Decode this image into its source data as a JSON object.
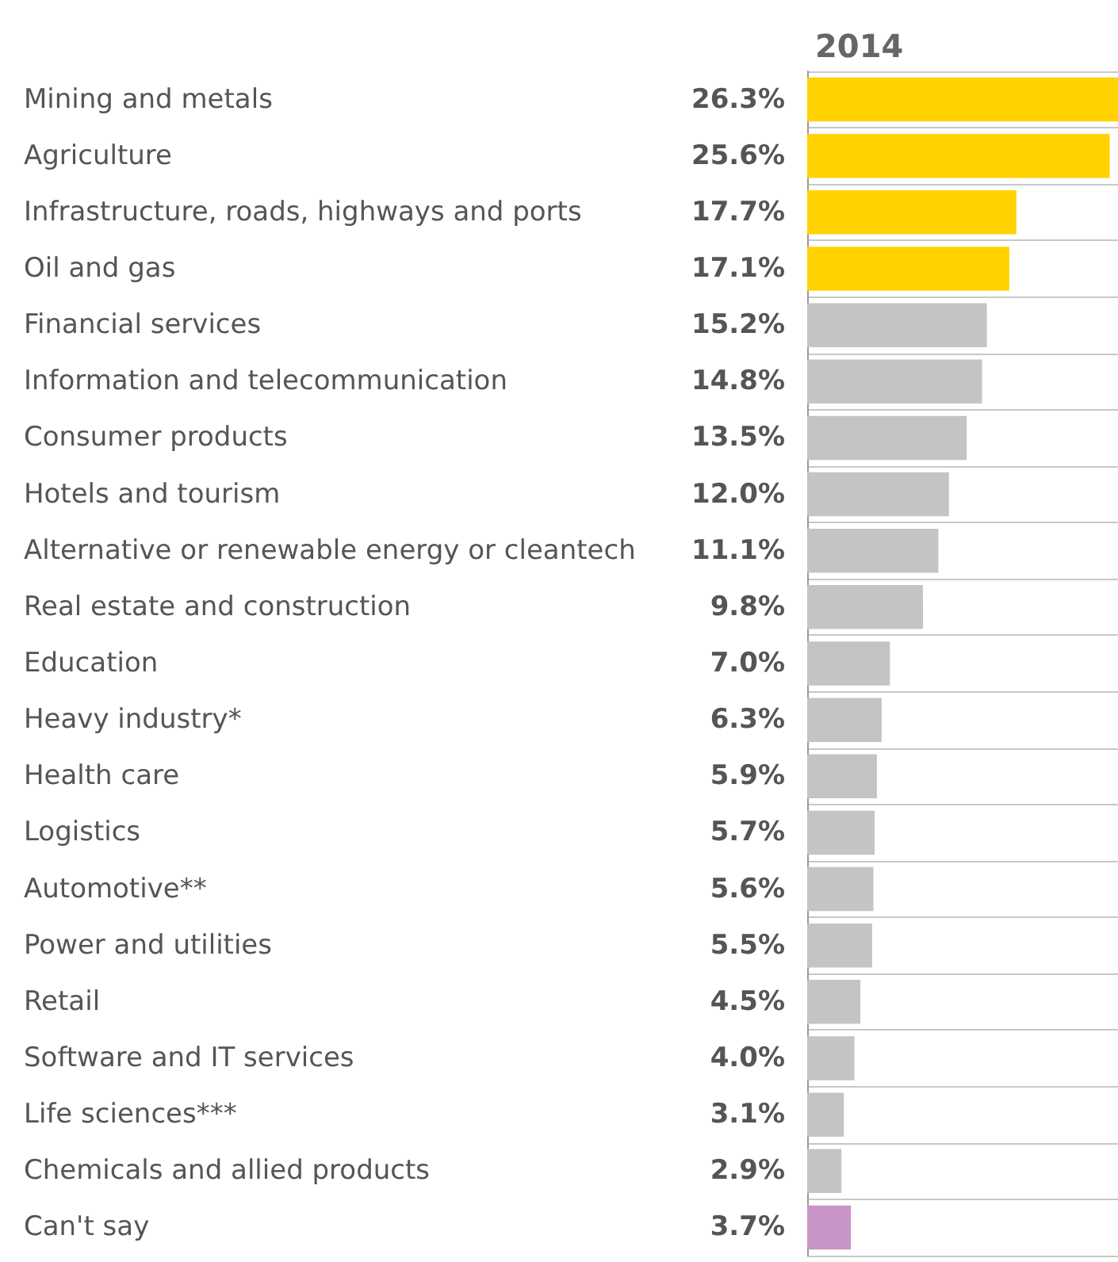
{
  "chart_data": {
    "type": "bar",
    "orientation": "horizontal",
    "title": "2014",
    "categories": [
      "Mining and metals",
      "Agriculture",
      "Infrastructure, roads, highways and ports",
      "Oil and gas",
      "Financial services",
      "Information and telecommunication",
      "Consumer products",
      "Hotels and tourism",
      "Alternative or renewable energy or cleantech",
      "Real estate and construction",
      "Education",
      "Heavy industry*",
      "Health care",
      "Logistics",
      "Automotive**",
      "Power and utilities",
      "Retail",
      "Software and IT services",
      "Life sciences***",
      "Chemicals and allied products",
      "Can't say"
    ],
    "values": [
      26.3,
      25.6,
      17.7,
      17.1,
      15.2,
      14.8,
      13.5,
      12.0,
      11.1,
      9.8,
      7.0,
      6.3,
      5.9,
      5.7,
      5.6,
      5.5,
      4.5,
      4.0,
      3.1,
      2.9,
      3.7
    ],
    "value_labels": [
      "26.3%",
      "25.6%",
      "17.7%",
      "17.1%",
      "15.2%",
      "14.8%",
      "13.5%",
      "12.0%",
      "11.1%",
      "9.8%",
      "7.0%",
      "6.3%",
      "5.9%",
      "5.7%",
      "5.6%",
      "5.5%",
      "4.5%",
      "4.0%",
      "3.1%",
      "2.9%",
      "3.7%"
    ],
    "colors": [
      "#ffd200",
      "#ffd200",
      "#ffd200",
      "#ffd200",
      "#c4c4c4",
      "#c4c4c4",
      "#c4c4c4",
      "#c4c4c4",
      "#c4c4c4",
      "#c4c4c4",
      "#c4c4c4",
      "#c4c4c4",
      "#c4c4c4",
      "#c4c4c4",
      "#c4c4c4",
      "#c4c4c4",
      "#c4c4c4",
      "#c4c4c4",
      "#c4c4c4",
      "#c4c4c4",
      "#c994c7"
    ],
    "grid": "y"
  }
}
